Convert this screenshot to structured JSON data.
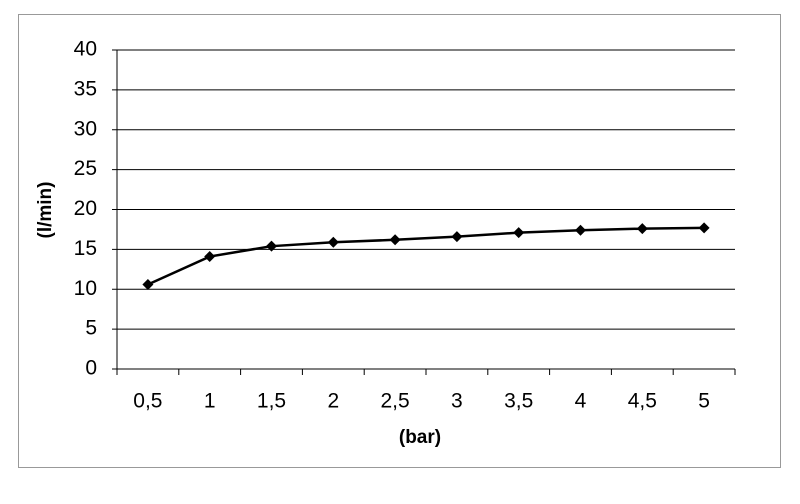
{
  "chart_data": {
    "type": "line",
    "x_label": "(bar)",
    "y_label": "(l/min)",
    "categories": [
      "0,5",
      "1",
      "1,5",
      "2",
      "2,5",
      "3",
      "3,5",
      "4",
      "4,5",
      "5"
    ],
    "series": [
      {
        "color": "#000000",
        "values": [
          10.6,
          14.1,
          15.4,
          15.9,
          16.2,
          16.6,
          17.1,
          17.4,
          17.6,
          17.7
        ]
      }
    ],
    "ylim": [
      0,
      40
    ],
    "yticks": [
      0,
      5,
      10,
      15,
      20,
      25,
      30,
      35,
      40
    ],
    "grid": true
  }
}
